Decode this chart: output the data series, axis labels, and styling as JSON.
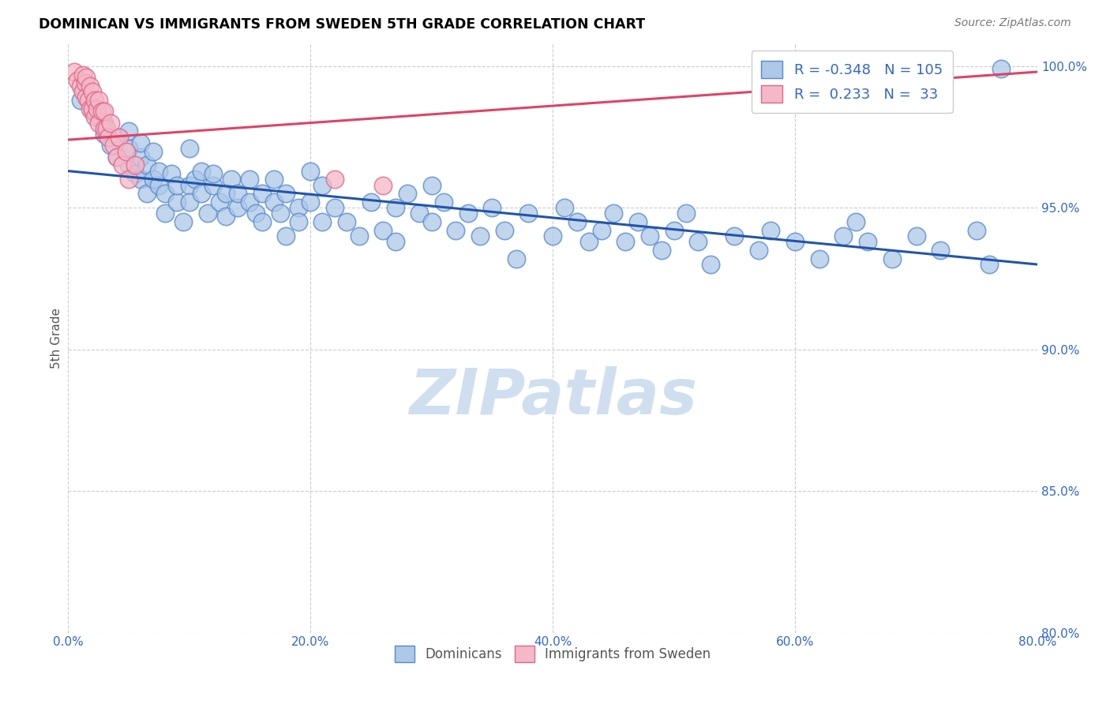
{
  "title": "DOMINICAN VS IMMIGRANTS FROM SWEDEN 5TH GRADE CORRELATION CHART",
  "source": "Source: ZipAtlas.com",
  "ylabel": "5th Grade",
  "xlim": [
    0.0,
    0.8
  ],
  "ylim": [
    0.875,
    1.008
  ],
  "blue_R": -0.348,
  "blue_N": 105,
  "pink_R": 0.233,
  "pink_N": 33,
  "blue_color": "#adc8e8",
  "blue_edge": "#5588cc",
  "pink_color": "#f5b8c8",
  "pink_edge": "#dd6688",
  "line_blue": "#2255aa",
  "line_pink": "#dd4466",
  "watermark_color": "#d0dff0",
  "xticks": [
    0.0,
    0.2,
    0.4,
    0.6,
    0.8
  ],
  "yticks": [
    0.8,
    0.85,
    0.9,
    0.95,
    1.0
  ],
  "ytick_labels": [
    "80.0%",
    "85.0%",
    "90.0%",
    "95.0%",
    "100.0%"
  ],
  "xtick_labels": [
    "0.0%",
    "20.0%",
    "40.0%",
    "60.0%",
    "80.0%"
  ],
  "blue_line_x0": 0.0,
  "blue_line_x1": 0.8,
  "blue_line_y0": 0.963,
  "blue_line_y1": 0.93,
  "pink_line_x0": 0.0,
  "pink_line_x1": 0.8,
  "pink_line_y0": 0.974,
  "pink_line_y1": 0.998,
  "blue_x": [
    0.01,
    0.02,
    0.025,
    0.03,
    0.03,
    0.035,
    0.04,
    0.04,
    0.05,
    0.05,
    0.05,
    0.055,
    0.06,
    0.06,
    0.06,
    0.065,
    0.065,
    0.07,
    0.07,
    0.075,
    0.075,
    0.08,
    0.08,
    0.085,
    0.09,
    0.09,
    0.095,
    0.1,
    0.1,
    0.1,
    0.105,
    0.11,
    0.11,
    0.115,
    0.12,
    0.12,
    0.125,
    0.13,
    0.13,
    0.135,
    0.14,
    0.14,
    0.15,
    0.15,
    0.155,
    0.16,
    0.16,
    0.17,
    0.17,
    0.175,
    0.18,
    0.18,
    0.19,
    0.19,
    0.2,
    0.2,
    0.21,
    0.21,
    0.22,
    0.23,
    0.24,
    0.25,
    0.26,
    0.27,
    0.27,
    0.28,
    0.29,
    0.3,
    0.3,
    0.31,
    0.32,
    0.33,
    0.34,
    0.35,
    0.36,
    0.37,
    0.38,
    0.4,
    0.41,
    0.42,
    0.43,
    0.44,
    0.45,
    0.46,
    0.47,
    0.48,
    0.49,
    0.5,
    0.51,
    0.52,
    0.53,
    0.55,
    0.57,
    0.58,
    0.6,
    0.62,
    0.64,
    0.65,
    0.66,
    0.68,
    0.7,
    0.72,
    0.75,
    0.76,
    0.77
  ],
  "blue_y": [
    0.988,
    0.984,
    0.982,
    0.976,
    0.98,
    0.972,
    0.968,
    0.975,
    0.971,
    0.965,
    0.977,
    0.962,
    0.968,
    0.973,
    0.96,
    0.965,
    0.955,
    0.96,
    0.97,
    0.958,
    0.963,
    0.955,
    0.948,
    0.962,
    0.952,
    0.958,
    0.945,
    0.971,
    0.958,
    0.952,
    0.96,
    0.963,
    0.955,
    0.948,
    0.958,
    0.962,
    0.952,
    0.955,
    0.947,
    0.96,
    0.95,
    0.955,
    0.96,
    0.952,
    0.948,
    0.955,
    0.945,
    0.952,
    0.96,
    0.948,
    0.955,
    0.94,
    0.95,
    0.945,
    0.963,
    0.952,
    0.945,
    0.958,
    0.95,
    0.945,
    0.94,
    0.952,
    0.942,
    0.95,
    0.938,
    0.955,
    0.948,
    0.958,
    0.945,
    0.952,
    0.942,
    0.948,
    0.94,
    0.95,
    0.942,
    0.932,
    0.948,
    0.94,
    0.95,
    0.945,
    0.938,
    0.942,
    0.948,
    0.938,
    0.945,
    0.94,
    0.935,
    0.942,
    0.948,
    0.938,
    0.93,
    0.94,
    0.935,
    0.942,
    0.938,
    0.932,
    0.94,
    0.945,
    0.938,
    0.932,
    0.94,
    0.935,
    0.942,
    0.93,
    0.999
  ],
  "pink_x": [
    0.005,
    0.008,
    0.01,
    0.012,
    0.012,
    0.014,
    0.015,
    0.015,
    0.017,
    0.018,
    0.018,
    0.02,
    0.02,
    0.022,
    0.022,
    0.024,
    0.025,
    0.025,
    0.028,
    0.03,
    0.03,
    0.032,
    0.033,
    0.035,
    0.038,
    0.04,
    0.042,
    0.045,
    0.048,
    0.05,
    0.055,
    0.22,
    0.26
  ],
  "pink_y": [
    0.998,
    0.995,
    0.993,
    0.997,
    0.991,
    0.994,
    0.989,
    0.996,
    0.988,
    0.993,
    0.985,
    0.991,
    0.985,
    0.988,
    0.982,
    0.985,
    0.988,
    0.98,
    0.984,
    0.978,
    0.984,
    0.978,
    0.975,
    0.98,
    0.972,
    0.968,
    0.975,
    0.965,
    0.97,
    0.96,
    0.965,
    0.96,
    0.958
  ]
}
